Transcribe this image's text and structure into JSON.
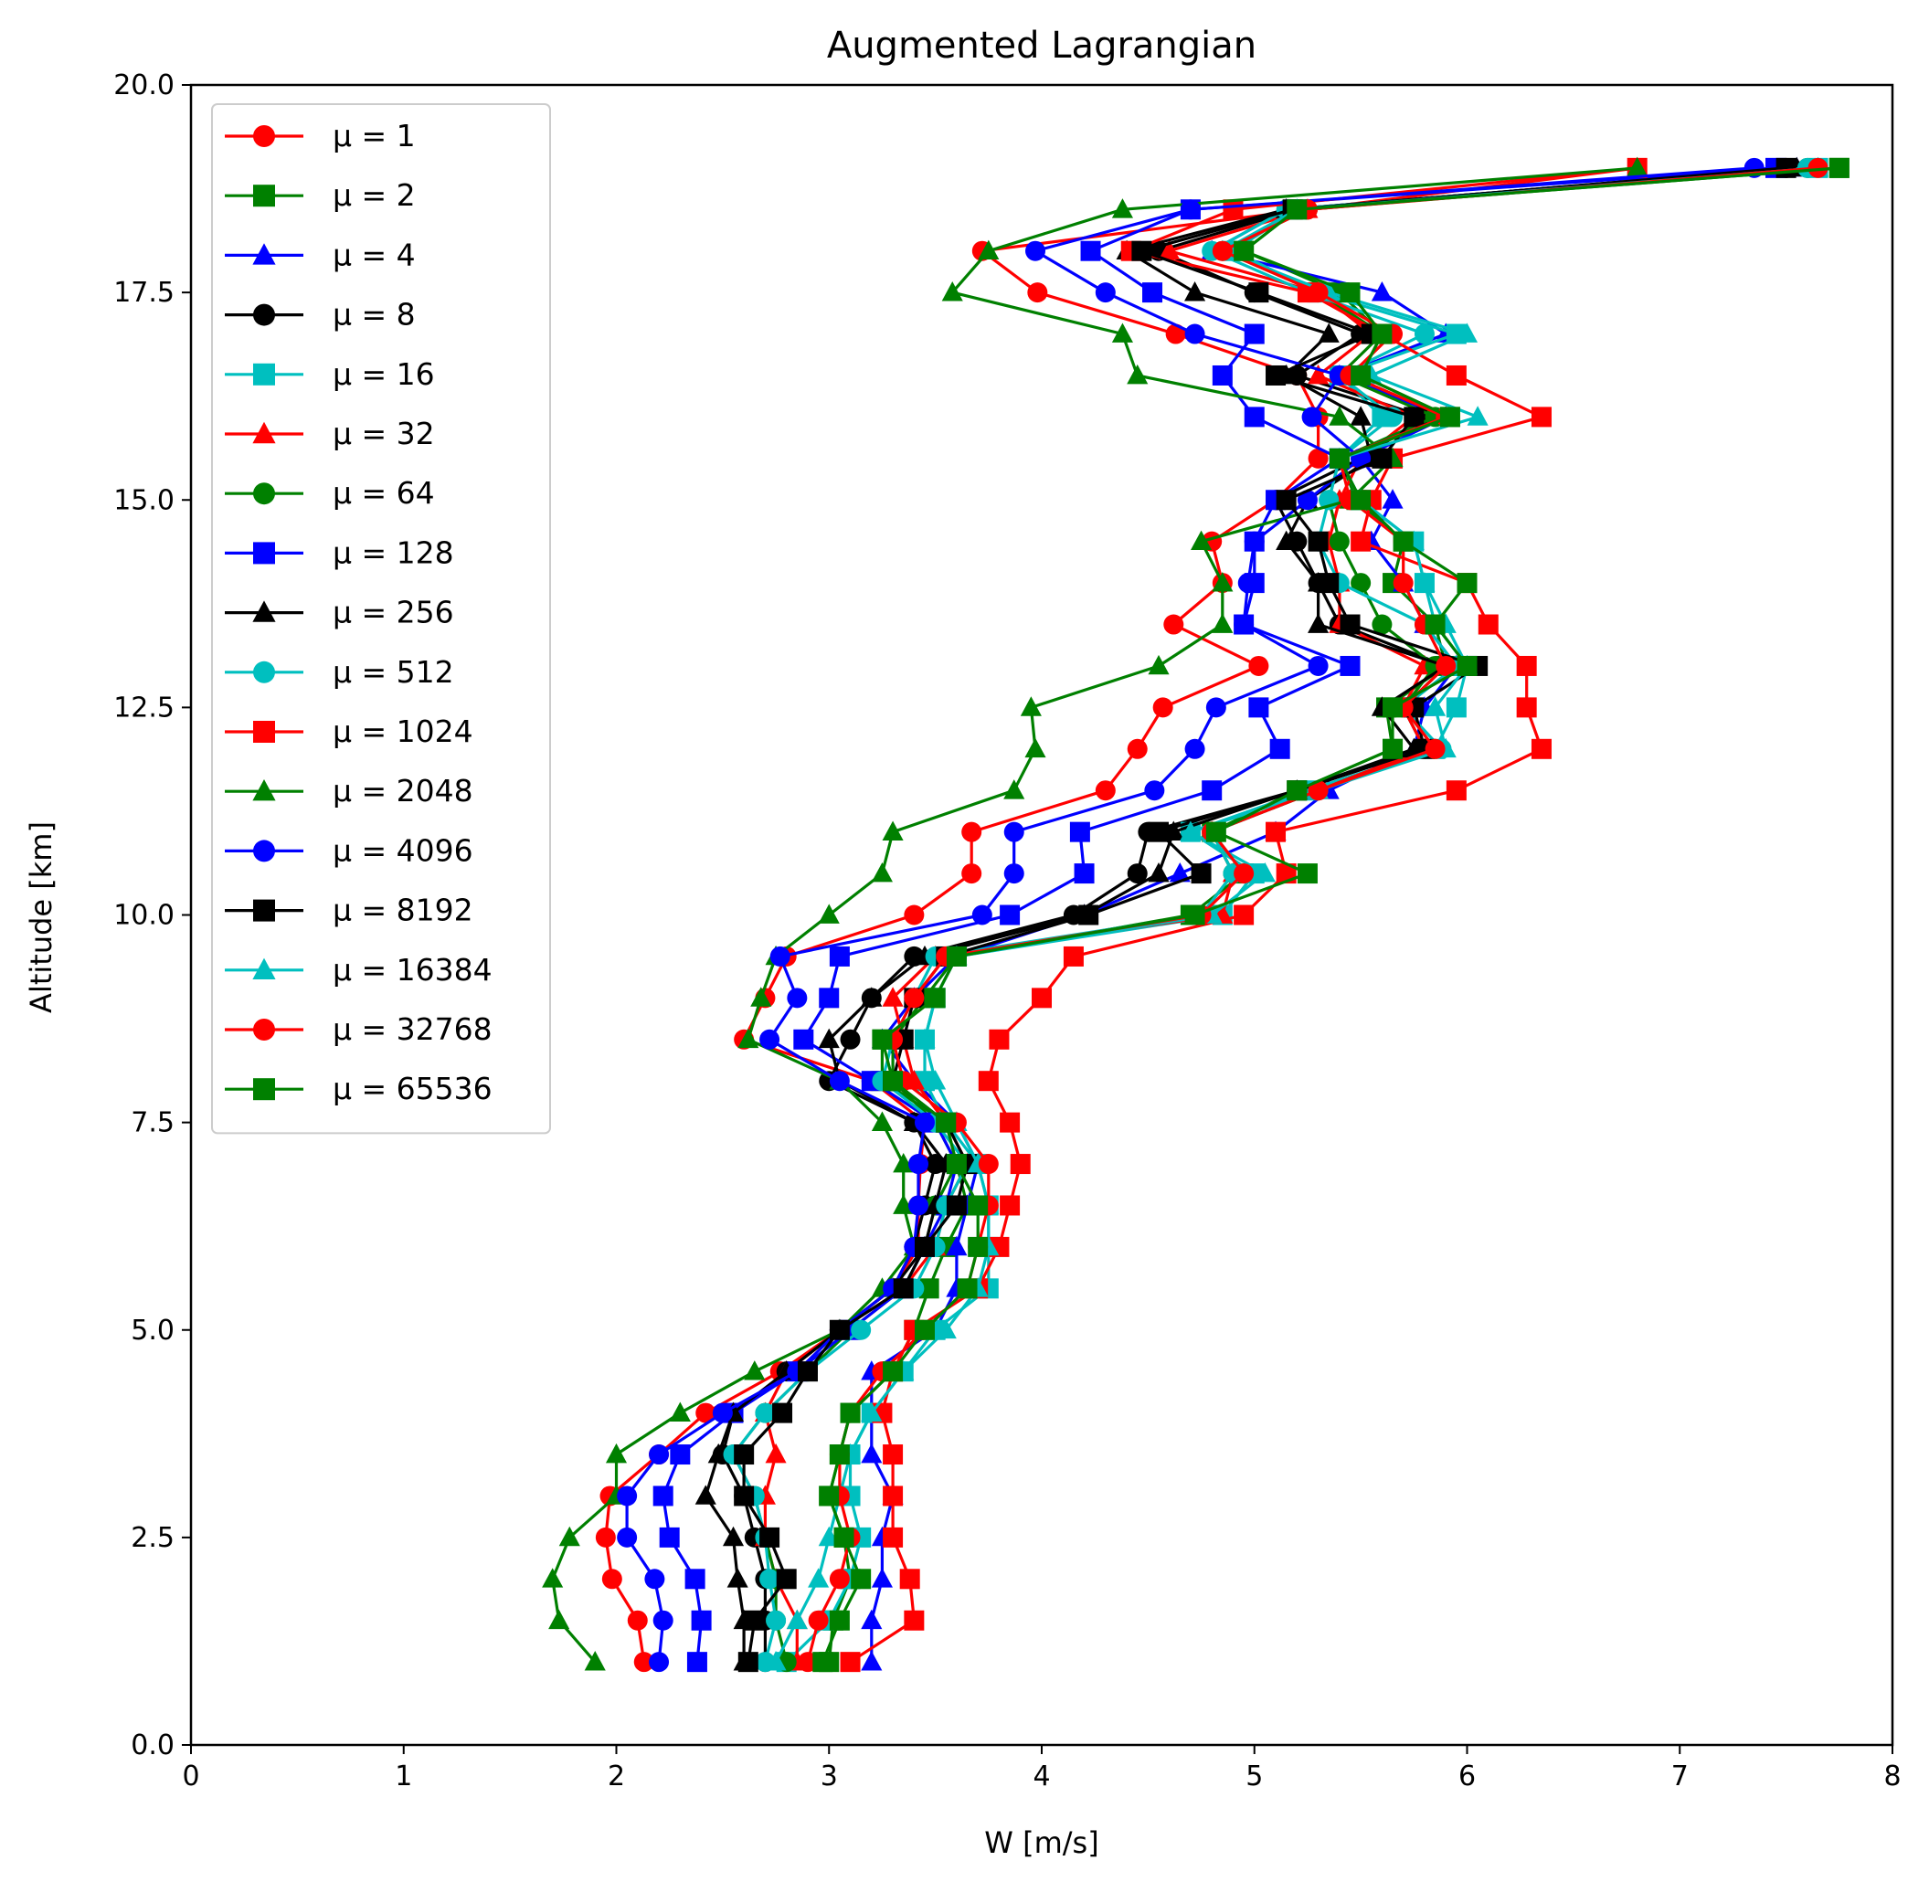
{
  "chart_data": {
    "type": "line",
    "title": "Augmented Lagrangian",
    "xlabel": "W [m/s]",
    "ylabel": "Altitude [km]",
    "xlim": [
      0,
      8
    ],
    "ylim": [
      0,
      20
    ],
    "xticks": [
      "0",
      "1",
      "2",
      "3",
      "4",
      "5",
      "6",
      "7",
      "8"
    ],
    "yticks": [
      "0.0",
      "2.5",
      "5.0",
      "7.5",
      "10.0",
      "12.5",
      "15.0",
      "17.5",
      "20.0"
    ],
    "grid": false,
    "legend_position": "upper-left",
    "altitudes": [
      1,
      1.5,
      2,
      2.5,
      3,
      3.5,
      4,
      4.5,
      5,
      5.5,
      6,
      6.5,
      7,
      7.5,
      8,
      8.5,
      9,
      9.5,
      10,
      10.5,
      11,
      11.5,
      12,
      12.5,
      13,
      13.5,
      14,
      14.5,
      15,
      15.5,
      16,
      16.5,
      17,
      17.5,
      18,
      18.5,
      19
    ],
    "series": [
      {
        "label": "μ = 1",
        "color": "#ff0000",
        "marker": "circle",
        "values": [
          2.13,
          2.1,
          1.98,
          1.95,
          1.97,
          2.2,
          2.42,
          2.77,
          3.05,
          3.3,
          3.42,
          3.42,
          3.43,
          3.45,
          3.2,
          2.6,
          2.7,
          2.8,
          3.4,
          3.67,
          3.67,
          4.3,
          4.45,
          4.57,
          5.02,
          4.62,
          4.85,
          4.8,
          5.1,
          5.3,
          5.3,
          5.2,
          4.63,
          3.98,
          3.72,
          5.25,
          7.5
        ]
      },
      {
        "label": "μ = 2",
        "color": "#008000",
        "marker": "square",
        "values": [
          3.0,
          3.02,
          3.1,
          3.07,
          3.0,
          3.05,
          3.1,
          3.3,
          3.4,
          3.47,
          3.55,
          3.65,
          3.6,
          3.55,
          3.25,
          3.25,
          3.5,
          3.6,
          4.7,
          4.95,
          4.8,
          5.2,
          5.65,
          5.62,
          5.9,
          5.85,
          5.65,
          5.7,
          5.48,
          5.4,
          5.92,
          5.5,
          5.6,
          5.4,
          4.95,
          5.2,
          7.75
        ]
      },
      {
        "label": "μ = 4",
        "color": "#0000ff",
        "marker": "triangle",
        "values": [
          3.2,
          3.2,
          3.25,
          3.25,
          3.3,
          3.2,
          3.2,
          3.2,
          3.5,
          3.6,
          3.6,
          3.65,
          3.7,
          3.6,
          3.4,
          3.25,
          3.4,
          3.6,
          4.2,
          4.65,
          5.1,
          5.35,
          5.75,
          5.8,
          5.95,
          5.8,
          5.7,
          5.55,
          5.65,
          5.5,
          5.9,
          5.4,
          5.9,
          5.6,
          4.8,
          5.15,
          7.55
        ]
      },
      {
        "label": "μ = 8",
        "color": "#000000",
        "marker": "circle",
        "values": [
          2.7,
          2.7,
          2.7,
          2.65,
          2.6,
          2.5,
          2.55,
          2.8,
          3.05,
          3.3,
          3.4,
          3.45,
          3.5,
          3.4,
          3.0,
          3.1,
          3.2,
          3.4,
          4.15,
          4.45,
          4.5,
          5.2,
          5.8,
          5.7,
          5.9,
          5.4,
          5.3,
          5.2,
          5.1,
          5.5,
          5.8,
          5.2,
          5.5,
          5.0,
          4.55,
          5.2,
          7.5
        ]
      },
      {
        "label": "μ = 16",
        "color": "#00bfbf",
        "marker": "square",
        "values": [
          2.8,
          3.0,
          3.1,
          3.15,
          3.1,
          3.1,
          3.2,
          3.35,
          3.5,
          3.75,
          3.75,
          3.75,
          3.7,
          3.55,
          3.45,
          3.45,
          3.5,
          3.6,
          4.85,
          5.0,
          4.7,
          5.25,
          5.85,
          5.95,
          6.0,
          5.85,
          5.8,
          5.75,
          5.5,
          5.4,
          5.6,
          5.4,
          5.95,
          5.3,
          4.9,
          5.2,
          7.65
        ]
      },
      {
        "label": "μ = 32",
        "color": "#ff0000",
        "marker": "triangle",
        "values": [
          2.85,
          2.85,
          2.75,
          2.7,
          2.7,
          2.75,
          2.7,
          2.8,
          3.05,
          3.35,
          3.5,
          3.55,
          3.65,
          3.55,
          3.4,
          3.35,
          3.3,
          3.5,
          4.85,
          4.9,
          4.8,
          5.3,
          5.8,
          5.7,
          5.8,
          5.4,
          5.4,
          5.35,
          5.4,
          5.5,
          5.75,
          5.3,
          5.55,
          5.3,
          4.6,
          5.25,
          6.8
        ]
      },
      {
        "label": "μ = 64",
        "color": "#008000",
        "marker": "circle",
        "values": [
          2.8,
          2.75,
          2.75,
          2.7,
          2.65,
          2.55,
          2.7,
          2.9,
          3.1,
          3.35,
          3.45,
          3.5,
          3.6,
          3.5,
          3.3,
          3.3,
          3.45,
          3.6,
          4.75,
          4.9,
          4.8,
          5.3,
          5.85,
          5.7,
          5.85,
          5.6,
          5.5,
          5.4,
          5.35,
          5.4,
          5.85,
          5.4,
          5.6,
          5.3,
          4.85,
          5.25,
          7.6
        ]
      },
      {
        "label": "μ = 128",
        "color": "#0000ff",
        "marker": "square",
        "values": [
          2.38,
          2.4,
          2.37,
          2.25,
          2.22,
          2.3,
          2.55,
          2.85,
          3.1,
          3.35,
          3.45,
          3.55,
          3.6,
          3.5,
          3.2,
          2.88,
          3.0,
          3.05,
          3.85,
          4.2,
          4.18,
          4.8,
          5.12,
          5.02,
          5.45,
          4.95,
          5.0,
          5.0,
          5.1,
          5.4,
          5.0,
          4.85,
          5.0,
          4.52,
          4.23,
          4.7,
          7.45
        ]
      },
      {
        "label": "μ = 256",
        "color": "#000000",
        "marker": "triangle",
        "values": [
          2.6,
          2.6,
          2.57,
          2.55,
          2.42,
          2.48,
          2.55,
          2.8,
          3.05,
          3.3,
          3.45,
          3.5,
          3.55,
          3.4,
          3.05,
          3.0,
          3.2,
          3.45,
          4.2,
          4.55,
          4.62,
          5.2,
          5.75,
          5.6,
          5.9,
          5.3,
          5.3,
          5.15,
          5.25,
          5.55,
          5.5,
          5.15,
          5.35,
          4.72,
          4.4,
          5.15,
          7.55
        ]
      },
      {
        "label": "μ = 512",
        "color": "#00bfbf",
        "marker": "circle",
        "values": [
          2.7,
          2.75,
          2.72,
          2.7,
          2.65,
          2.55,
          2.7,
          2.9,
          3.15,
          3.4,
          3.5,
          3.55,
          3.65,
          3.5,
          3.25,
          3.3,
          3.4,
          3.5,
          4.75,
          4.9,
          4.8,
          5.3,
          5.88,
          5.7,
          5.95,
          5.8,
          5.4,
          5.3,
          5.35,
          5.4,
          5.65,
          5.4,
          5.8,
          5.25,
          4.8,
          5.15,
          7.6
        ]
      },
      {
        "label": "μ = 1024",
        "color": "#ff0000",
        "marker": "square",
        "values": [
          3.1,
          3.4,
          3.38,
          3.3,
          3.3,
          3.3,
          3.25,
          3.3,
          3.4,
          3.7,
          3.8,
          3.85,
          3.9,
          3.85,
          3.75,
          3.8,
          4.0,
          4.15,
          4.95,
          5.15,
          5.1,
          5.95,
          6.35,
          6.28,
          6.28,
          6.1,
          6.0,
          5.5,
          5.55,
          5.65,
          6.35,
          5.95,
          5.6,
          5.25,
          4.42,
          4.9,
          6.8
        ]
      },
      {
        "label": "μ = 2048",
        "color": "#008000",
        "marker": "triangle",
        "values": [
          1.9,
          1.73,
          1.7,
          1.78,
          2.0,
          2.0,
          2.3,
          2.65,
          3.05,
          3.25,
          3.4,
          3.35,
          3.35,
          3.25,
          3.05,
          2.62,
          2.68,
          2.75,
          3.0,
          3.25,
          3.3,
          3.87,
          3.97,
          3.95,
          4.55,
          4.85,
          4.85,
          4.75,
          5.45,
          5.65,
          5.4,
          4.45,
          4.38,
          3.58,
          3.75,
          4.38,
          6.8
        ]
      },
      {
        "label": "μ = 4096",
        "color": "#0000ff",
        "marker": "circle",
        "values": [
          2.2,
          2.22,
          2.18,
          2.05,
          2.05,
          2.2,
          2.5,
          2.85,
          3.05,
          3.3,
          3.4,
          3.42,
          3.42,
          3.45,
          3.05,
          2.72,
          2.85,
          2.77,
          3.72,
          3.87,
          3.87,
          4.53,
          4.72,
          4.82,
          5.3,
          4.95,
          4.97,
          5.0,
          5.25,
          5.5,
          5.27,
          5.4,
          4.72,
          4.3,
          3.97,
          4.7,
          7.35
        ]
      },
      {
        "label": "μ = 8192",
        "color": "#000000",
        "marker": "square",
        "values": [
          2.62,
          2.65,
          2.8,
          2.72,
          2.6,
          2.6,
          2.78,
          2.9,
          3.05,
          3.35,
          3.45,
          3.6,
          3.65,
          3.55,
          3.3,
          3.35,
          3.4,
          3.55,
          4.22,
          4.75,
          4.55,
          5.2,
          5.8,
          5.75,
          6.05,
          5.45,
          5.35,
          5.3,
          5.15,
          5.6,
          5.75,
          5.1,
          5.55,
          5.02,
          4.47,
          5.18,
          7.5
        ]
      },
      {
        "label": "μ = 16384",
        "color": "#00bfbf",
        "marker": "triangle",
        "values": [
          2.75,
          2.85,
          2.95,
          3.0,
          3.05,
          3.1,
          3.2,
          3.35,
          3.55,
          3.7,
          3.75,
          3.75,
          3.7,
          3.6,
          3.5,
          3.45,
          3.5,
          3.6,
          4.8,
          5.05,
          4.7,
          5.3,
          5.9,
          5.85,
          6.0,
          5.9,
          5.8,
          5.75,
          5.5,
          5.4,
          6.05,
          5.55,
          6.0,
          5.35,
          4.85,
          5.2,
          7.65
        ]
      },
      {
        "label": "μ = 32768",
        "color": "#ff0000",
        "marker": "circle",
        "values": [
          2.9,
          2.95,
          3.05,
          3.1,
          3.05,
          3.05,
          3.1,
          3.25,
          3.45,
          3.65,
          3.7,
          3.75,
          3.75,
          3.6,
          3.35,
          3.3,
          3.4,
          3.55,
          4.75,
          4.95,
          4.8,
          5.3,
          5.85,
          5.7,
          5.9,
          5.8,
          5.7,
          5.7,
          5.45,
          5.4,
          5.9,
          5.45,
          5.65,
          5.3,
          4.85,
          5.25,
          7.65
        ]
      },
      {
        "label": "μ = 65536",
        "color": "#008000",
        "marker": "square",
        "values": [
          2.97,
          3.05,
          3.15,
          3.07,
          3.0,
          3.05,
          3.1,
          3.3,
          3.45,
          3.65,
          3.7,
          3.7,
          3.6,
          3.55,
          3.3,
          3.25,
          3.5,
          3.6,
          4.72,
          5.25,
          4.82,
          5.2,
          5.65,
          5.65,
          6.0,
          5.85,
          6.0,
          5.7,
          5.5,
          5.4,
          5.92,
          5.5,
          5.6,
          5.45,
          4.95,
          5.2,
          7.75
        ]
      }
    ]
  }
}
